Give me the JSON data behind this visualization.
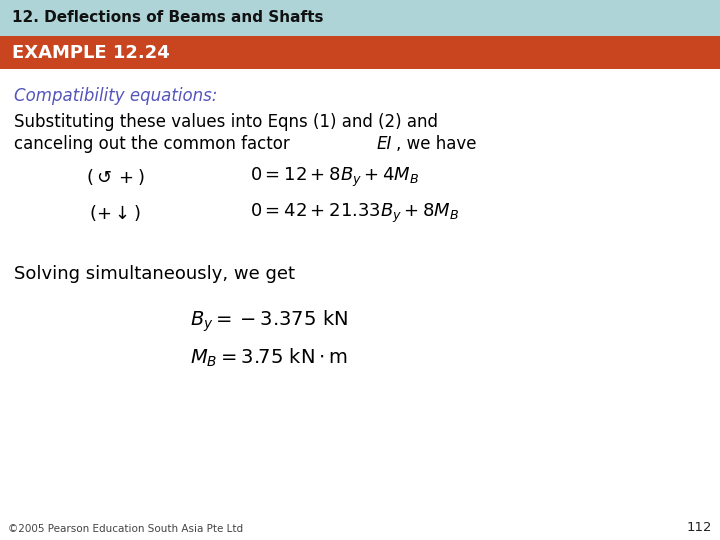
{
  "title_bar_text": "12. Deflections of Beams and Shafts",
  "title_bar_bg": "#aed4d8",
  "title_bar_height": 36,
  "title_text_color": "#111111",
  "example_bar_text": "EXAMPLE 12.24",
  "example_bar_bg": "#c94520",
  "example_bar_height": 33,
  "example_bar_text_color": "#ffffff",
  "body_bg": "#ffffff",
  "compatibility_text": "Compatibility equations:",
  "compatibility_color": "#5555bb",
  "line1": "Substituting these values into Eqns (1) and (2) and",
  "line2_pre": "canceling out the common factor ",
  "line2_italic": "EI",
  "line2_post": ", we have",
  "solving_text": "Solving simultaneously, we get",
  "footer_text": "©2005 Pearson Education South Asia Pte Ltd",
  "page_number": "112",
  "text_color": "#000000",
  "font_size_title": 11,
  "font_size_example": 13,
  "font_size_body": 12,
  "font_size_eq": 13,
  "font_size_footer": 7.5
}
